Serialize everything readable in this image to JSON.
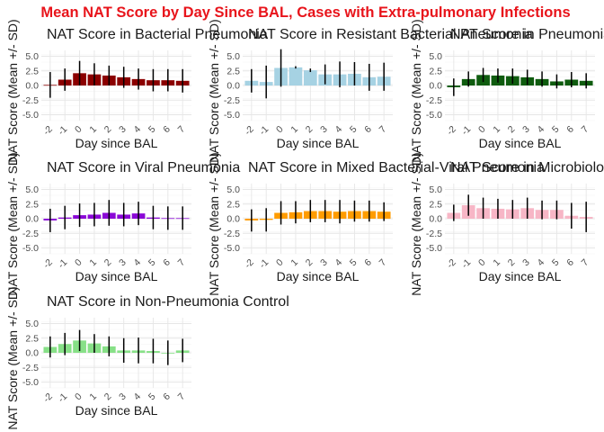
{
  "suptitle": "Mean NAT Score by Day Since BAL, Cases with Extra-pulmonary Infections",
  "chart_data": [
    {
      "type": "bar",
      "title": "NAT Score in Bacterial Pneumonia",
      "xlabel": "Day since BAL",
      "ylabel": "NAT Score (Mean +/- SD)",
      "color": "#8b0000",
      "categories": [
        "-2",
        "-1",
        "0",
        "1",
        "2",
        "3",
        "4",
        "5",
        "6",
        "7"
      ],
      "values": [
        0.1,
        1.0,
        2.1,
        1.9,
        1.7,
        1.4,
        1.1,
        0.9,
        0.9,
        0.8
      ],
      "sd": [
        2.2,
        1.9,
        2.1,
        1.9,
        1.7,
        1.8,
        1.8,
        1.9,
        1.9,
        2.0
      ],
      "ylim": [
        -6,
        6
      ],
      "yticks": [
        "5.0",
        "2.5",
        "0.0",
        "-2.5",
        "-5.0"
      ]
    },
    {
      "type": "bar",
      "title": "NAT Score in Resistant Bacterial Pneumonia",
      "xlabel": "Day since BAL",
      "ylabel": "NAT Score (Mean +/- SD)",
      "color": "#a6d2e3",
      "categories": [
        "-2",
        "-1",
        "0",
        "1",
        "2",
        "3",
        "4",
        "5",
        "6",
        "7"
      ],
      "values": [
        0.8,
        0.6,
        3.0,
        3.1,
        2.6,
        1.9,
        1.9,
        2.0,
        1.4,
        1.5
      ],
      "sd": [
        2.0,
        2.8,
        3.2,
        0.2,
        0.3,
        1.7,
        2.2,
        2.0,
        2.3,
        2.4
      ],
      "ylim": [
        -6,
        6
      ],
      "yticks": [
        "5.0",
        "2.5",
        "0.0",
        "-2.5",
        "-5.0"
      ]
    },
    {
      "type": "bar",
      "title": "NAT Score in Pneumonia Susceptible",
      "xlabel": "Day since BAL",
      "ylabel": "NAT Score (Mean +/- SD)",
      "color": "#0f5c0f",
      "categories": [
        "-2",
        "-1",
        "0",
        "1",
        "2",
        "3",
        "4",
        "5",
        "6",
        "7"
      ],
      "values": [
        -0.3,
        1.1,
        1.8,
        1.7,
        1.6,
        1.4,
        1.1,
        0.7,
        1.0,
        0.8
      ],
      "sd": [
        1.5,
        1.3,
        1.2,
        1.2,
        1.3,
        1.3,
        1.3,
        1.2,
        1.3,
        1.3
      ],
      "ylim": [
        -6,
        6
      ],
      "yticks": [
        "5.0",
        "2.5",
        "0.0",
        "-2.5",
        "-5.0"
      ]
    },
    {
      "type": "bar",
      "title": "NAT Score in Viral Pneumonia",
      "xlabel": "Day since BAL",
      "ylabel": "NAT Score (Mean +/- SD)",
      "color": "#8a07d6",
      "categories": [
        "-2",
        "-1",
        "0",
        "1",
        "2",
        "3",
        "4",
        "5",
        "6",
        "7"
      ],
      "values": [
        -0.3,
        0.2,
        0.6,
        0.7,
        1.0,
        0.7,
        0.9,
        0.2,
        0.1,
        0.1
      ],
      "sd": [
        2.0,
        2.0,
        2.0,
        2.0,
        2.2,
        2.0,
        2.0,
        2.0,
        2.0,
        2.0
      ],
      "ylim": [
        -6,
        6
      ],
      "yticks": [
        "5.0",
        "2.5",
        "0.0",
        "-2.5",
        "-5.0"
      ]
    },
    {
      "type": "bar",
      "title": "NAT Score in Mixed Bacterial-Viral Pneumonia",
      "xlabel": "Day since BAL",
      "ylabel": "NAT Score (Mean +/- SD)",
      "color": "#ff9c00",
      "categories": [
        "-2",
        "-1",
        "0",
        "1",
        "2",
        "3",
        "4",
        "5",
        "6",
        "7"
      ],
      "values": [
        -0.3,
        -0.2,
        1.0,
        1.1,
        1.3,
        1.3,
        1.2,
        1.3,
        1.3,
        1.2
      ],
      "sd": [
        1.9,
        2.0,
        2.0,
        1.9,
        1.9,
        1.9,
        2.0,
        1.8,
        1.8,
        1.6
      ],
      "ylim": [
        -6,
        6
      ],
      "yticks": [
        "5.0",
        "2.5",
        "0.0",
        "-2.5",
        "-5.0"
      ]
    },
    {
      "type": "bar",
      "title": "NAT Score in Microbiological",
      "xlabel": "Day since BAL",
      "ylabel": "NAT Score (Mean +/- SD)",
      "color": "#f7b6c6",
      "categories": [
        "-2",
        "-1",
        "0",
        "1",
        "2",
        "3",
        "4",
        "5",
        "6",
        "7"
      ],
      "values": [
        1.0,
        2.3,
        1.8,
        1.7,
        1.6,
        1.8,
        1.5,
        1.5,
        0.5,
        0.3
      ],
      "sd": [
        1.4,
        1.8,
        1.8,
        1.7,
        1.6,
        1.8,
        1.6,
        1.6,
        2.2,
        2.6
      ],
      "ylim": [
        -6,
        6
      ],
      "yticks": [
        "5.0",
        "2.5",
        "0.0",
        "-2.5",
        "-5.0"
      ]
    },
    {
      "type": "bar",
      "title": "NAT Score in Non-Pneumonia Control",
      "xlabel": "Day since BAL",
      "ylabel": "NAT Score (Mean +/- SD)",
      "color": "#87e087",
      "categories": [
        "-2",
        "-1",
        "0",
        "1",
        "2",
        "3",
        "4",
        "5",
        "6",
        "7"
      ],
      "values": [
        1.0,
        1.5,
        2.1,
        1.6,
        1.1,
        0.4,
        0.4,
        0.3,
        0.0,
        0.4
      ],
      "sd": [
        1.8,
        1.9,
        1.8,
        1.6,
        1.7,
        2.1,
        2.2,
        2.1,
        2.1,
        2.0
      ],
      "ylim": [
        -6,
        6
      ],
      "yticks": [
        "5.0",
        "2.5",
        "0.0",
        "-2.5",
        "-5.0"
      ]
    }
  ]
}
